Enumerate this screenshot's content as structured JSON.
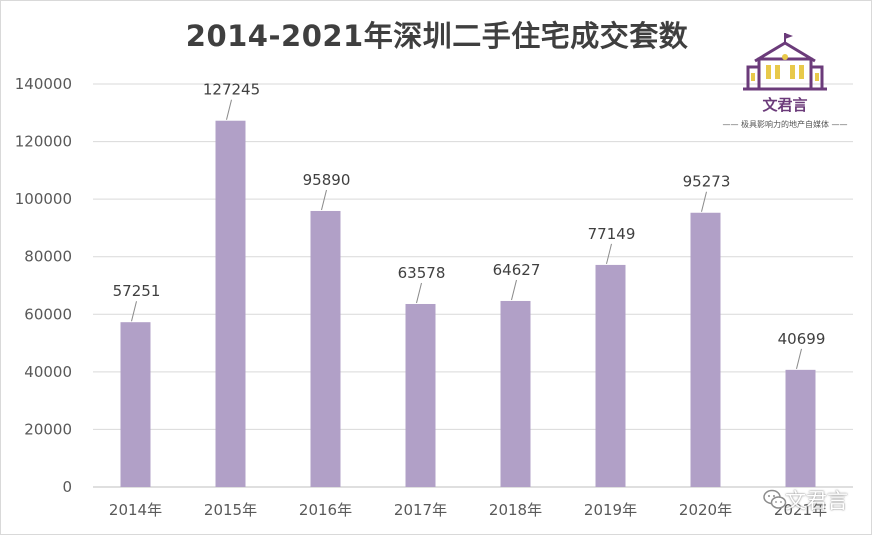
{
  "chart_data": {
    "type": "bar",
    "title": "2014-2021年深圳二手住宅成交套数",
    "xlabel": "",
    "ylabel": "",
    "categories": [
      "2014年",
      "2015年",
      "2016年",
      "2017年",
      "2018年",
      "2019年",
      "2020年",
      "2021年"
    ],
    "values": [
      57251,
      127245,
      95890,
      63578,
      64627,
      77149,
      95273,
      40699
    ],
    "data_labels": [
      "57251",
      "127245",
      "95890",
      "63578",
      "64627",
      "77149",
      "95273",
      "40699"
    ],
    "ylim": [
      0,
      140000
    ],
    "yticks": [
      0,
      20000,
      40000,
      60000,
      80000,
      100000,
      120000,
      140000
    ],
    "ytick_labels": [
      "0",
      "20000",
      "40000",
      "60000",
      "80000",
      "100000",
      "120000",
      "140000"
    ],
    "grid": true,
    "legend": "none",
    "bar_color": "#b1a0c7"
  },
  "logo": {
    "name": "文君言",
    "slogan": "—— 极具影响力的地产自媒体 ——",
    "color": "#6b3b7a"
  },
  "watermark": {
    "text": "文君言",
    "icon": "wechat-icon"
  }
}
